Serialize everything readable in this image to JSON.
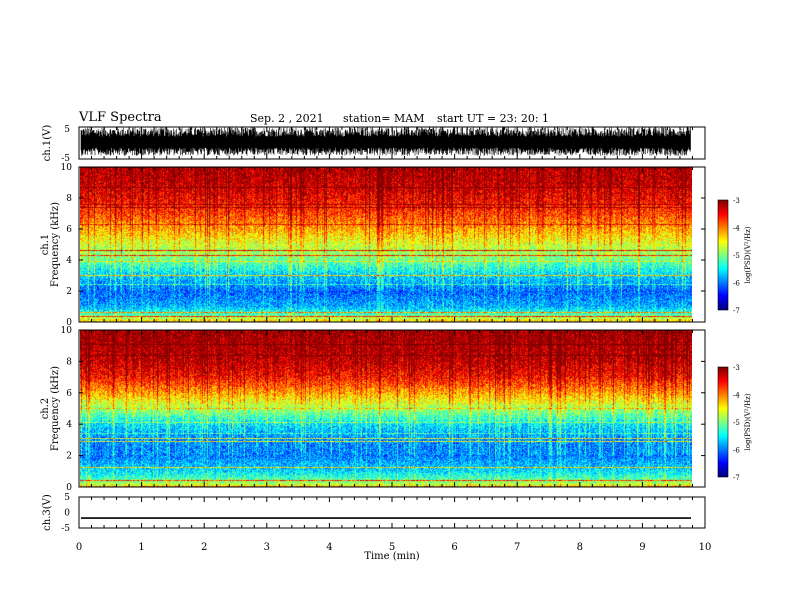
{
  "header": {
    "title": "VLF Spectra",
    "date": "Sep. 2 , 2021",
    "station": "station= MAM",
    "start": "start UT =   23: 20: 1"
  },
  "chart_data": [
    {
      "type": "line",
      "panel": "ch1-waveform",
      "ylabel": "ch.1(V)",
      "ylim": [
        -5,
        5
      ],
      "yticks": [
        "5",
        "-5"
      ],
      "xlim": [
        0,
        10
      ],
      "description_values": "dense noise waveform filling roughly -3 to +5 V"
    },
    {
      "type": "heatmap",
      "panel": "ch1-spectrogram",
      "ylabel": "ch.1\nFrequency (kHz)",
      "ylim": [
        0,
        10
      ],
      "yticks": [
        "0",
        "2",
        "4",
        "6",
        "8",
        "10"
      ],
      "xlim": [
        0,
        9.83
      ],
      "colorbar": {
        "label": "log(PSD)(V²/Hz)",
        "range": [
          -7,
          -3
        ],
        "ticks": [
          "-3",
          "-4",
          "-5",
          "-6",
          "-7"
        ]
      },
      "profile_freq_khz": [
        0,
        0.5,
        1,
        2,
        3,
        4,
        5,
        6,
        7,
        8,
        9,
        10
      ],
      "profile_log_psd": [
        -4.4,
        -5.4,
        -5.9,
        -6.2,
        -5.8,
        -5.2,
        -4.8,
        -4.3,
        -3.9,
        -3.6,
        -3.4,
        -3.3
      ],
      "strong_lines_khz": [
        0.3,
        0.6,
        3.0,
        4.3,
        4.6
      ]
    },
    {
      "type": "heatmap",
      "panel": "ch2-spectrogram",
      "ylabel": "ch.2\nFrequency (kHz)",
      "ylim": [
        0,
        10
      ],
      "yticks": [
        "0",
        "2",
        "4",
        "6",
        "8",
        "10"
      ],
      "xlim": [
        0,
        9.83
      ],
      "colorbar": {
        "label": "log(PSD)(V²/Hz)",
        "range": [
          -7,
          -3
        ],
        "ticks": [
          "-3",
          "-4",
          "-5",
          "-6",
          "-7"
        ]
      },
      "profile_freq_khz": [
        0,
        0.5,
        1,
        2,
        3,
        4,
        5,
        6,
        7,
        8,
        9,
        10
      ],
      "profile_log_psd": [
        -4.6,
        -5.3,
        -5.7,
        -6.1,
        -6.1,
        -5.7,
        -5.0,
        -4.3,
        -3.7,
        -3.4,
        -3.3,
        -3.2
      ],
      "strong_lines_khz": [
        0.4,
        1.2,
        2.9,
        3.1
      ]
    },
    {
      "type": "line",
      "panel": "ch3-waveform",
      "ylabel": "ch.3(V)",
      "ylim": [
        -5,
        5
      ],
      "yticks": [
        "5",
        "0",
        "-5"
      ],
      "xlim": [
        0,
        10
      ],
      "xlabel": "Time (min)",
      "xticks": [
        "0",
        "1",
        "2",
        "3",
        "4",
        "5",
        "6",
        "7",
        "8",
        "9",
        "10"
      ],
      "x": [
        0,
        10
      ],
      "y": [
        -1.8,
        -1.8
      ]
    }
  ]
}
